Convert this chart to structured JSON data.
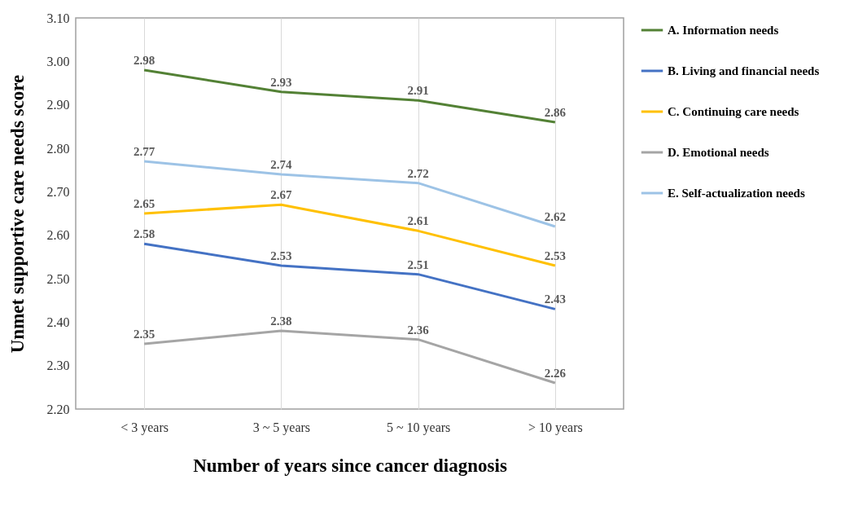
{
  "chart_data": {
    "type": "line",
    "xlabel": "Number of years since cancer diagnosis",
    "ylabel": "Unmet supportive care needs score",
    "categories": [
      "< 3 years",
      "3 ~ 5 years",
      "5 ~ 10 years",
      "> 10 years"
    ],
    "series": [
      {
        "name": "A. Information needs",
        "color": "#538135",
        "values": [
          2.98,
          2.93,
          2.91,
          2.86
        ]
      },
      {
        "name": "B. Living and financial needs",
        "color": "#4472c4",
        "values": [
          2.58,
          2.53,
          2.51,
          2.43
        ]
      },
      {
        "name": "C. Continuing care needs",
        "color": "#ffc000",
        "values": [
          2.65,
          2.67,
          2.61,
          2.53
        ]
      },
      {
        "name": "D. Emotional needs",
        "color": "#a5a5a5",
        "values": [
          2.35,
          2.38,
          2.36,
          2.26
        ]
      },
      {
        "name": "E. Self-actualization needs",
        "color": "#9dc3e6",
        "values": [
          2.77,
          2.74,
          2.72,
          2.62
        ]
      }
    ],
    "ylim": [
      2.2,
      3.1
    ],
    "yticks": [
      {
        "value": 2.2,
        "label": "2.20"
      },
      {
        "value": 2.3,
        "label": "2.30"
      },
      {
        "value": 2.4,
        "label": "2.40"
      },
      {
        "value": 2.5,
        "label": "2.50"
      },
      {
        "value": 2.6,
        "label": "2.60"
      },
      {
        "value": 2.7,
        "label": "2.70"
      },
      {
        "value": 2.8,
        "label": "2.80"
      },
      {
        "value": 2.9,
        "label": "2.90"
      },
      {
        "value": 3.0,
        "label": "3.00"
      },
      {
        "value": 3.1,
        "label": "3.10"
      }
    ],
    "grid": "x",
    "legend": "right",
    "marker": "none",
    "line_style": "solid",
    "data_labels": true
  }
}
